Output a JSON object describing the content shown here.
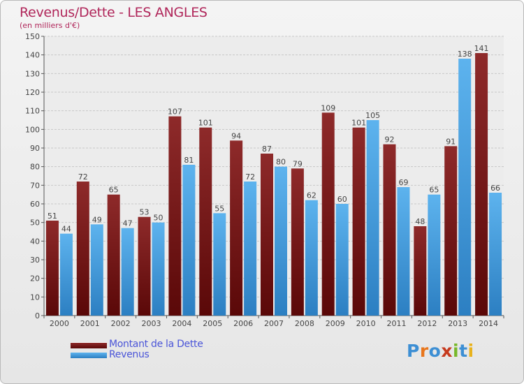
{
  "title": "Revenus/Dette - LES ANGLES",
  "subtitle": "(en milliers d'€)",
  "logo": {
    "text": "Proxiti",
    "colors": [
      "#3d8fd4",
      "#e8761c",
      "#3d8fd4",
      "#c63a1e",
      "#77b82a",
      "#3d8fd4",
      "#e8b21c"
    ]
  },
  "colors": {
    "dette": "#7a1a1a",
    "revenus": "#4fa6e6",
    "title": "#b0265a",
    "legend_text": "#4b55d8"
  },
  "chart_data": {
    "type": "bar",
    "title": "Revenus/Dette - LES ANGLES",
    "ylabel": "(en milliers d'€)",
    "categories": [
      "2000",
      "2001",
      "2002",
      "2003",
      "2004",
      "2005",
      "2006",
      "2007",
      "2008",
      "2009",
      "2010",
      "2011",
      "2012",
      "2013",
      "2014"
    ],
    "series": [
      {
        "name": "Montant de la Dette",
        "values": [
          51,
          72,
          65,
          53,
          107,
          101,
          94,
          87,
          79,
          109,
          101,
          92,
          48,
          91,
          141
        ],
        "labels": [
          "51",
          "72",
          "65",
          "53",
          "107",
          "101",
          "94",
          "87",
          "79",
          "109",
          "101",
          "92",
          "48",
          "91",
          "141"
        ]
      },
      {
        "name": "Revenus",
        "values": [
          44,
          49,
          47,
          50,
          81,
          55,
          72,
          80,
          62,
          60,
          105,
          69,
          65,
          138,
          66
        ],
        "labels": [
          "44",
          "49",
          "47",
          "50",
          "81",
          "55",
          "72",
          "80",
          "62",
          "60",
          "105",
          "69",
          "65",
          "138",
          "66"
        ]
      }
    ],
    "yticks": [
      "0",
      "10",
      "20",
      "30",
      "40",
      "50",
      "60",
      "70",
      "80",
      "90",
      "100",
      "110",
      "120",
      "130",
      "140",
      "150"
    ],
    "ylim": [
      0,
      150
    ],
    "grid": true,
    "legend_position": "bottom-left"
  }
}
